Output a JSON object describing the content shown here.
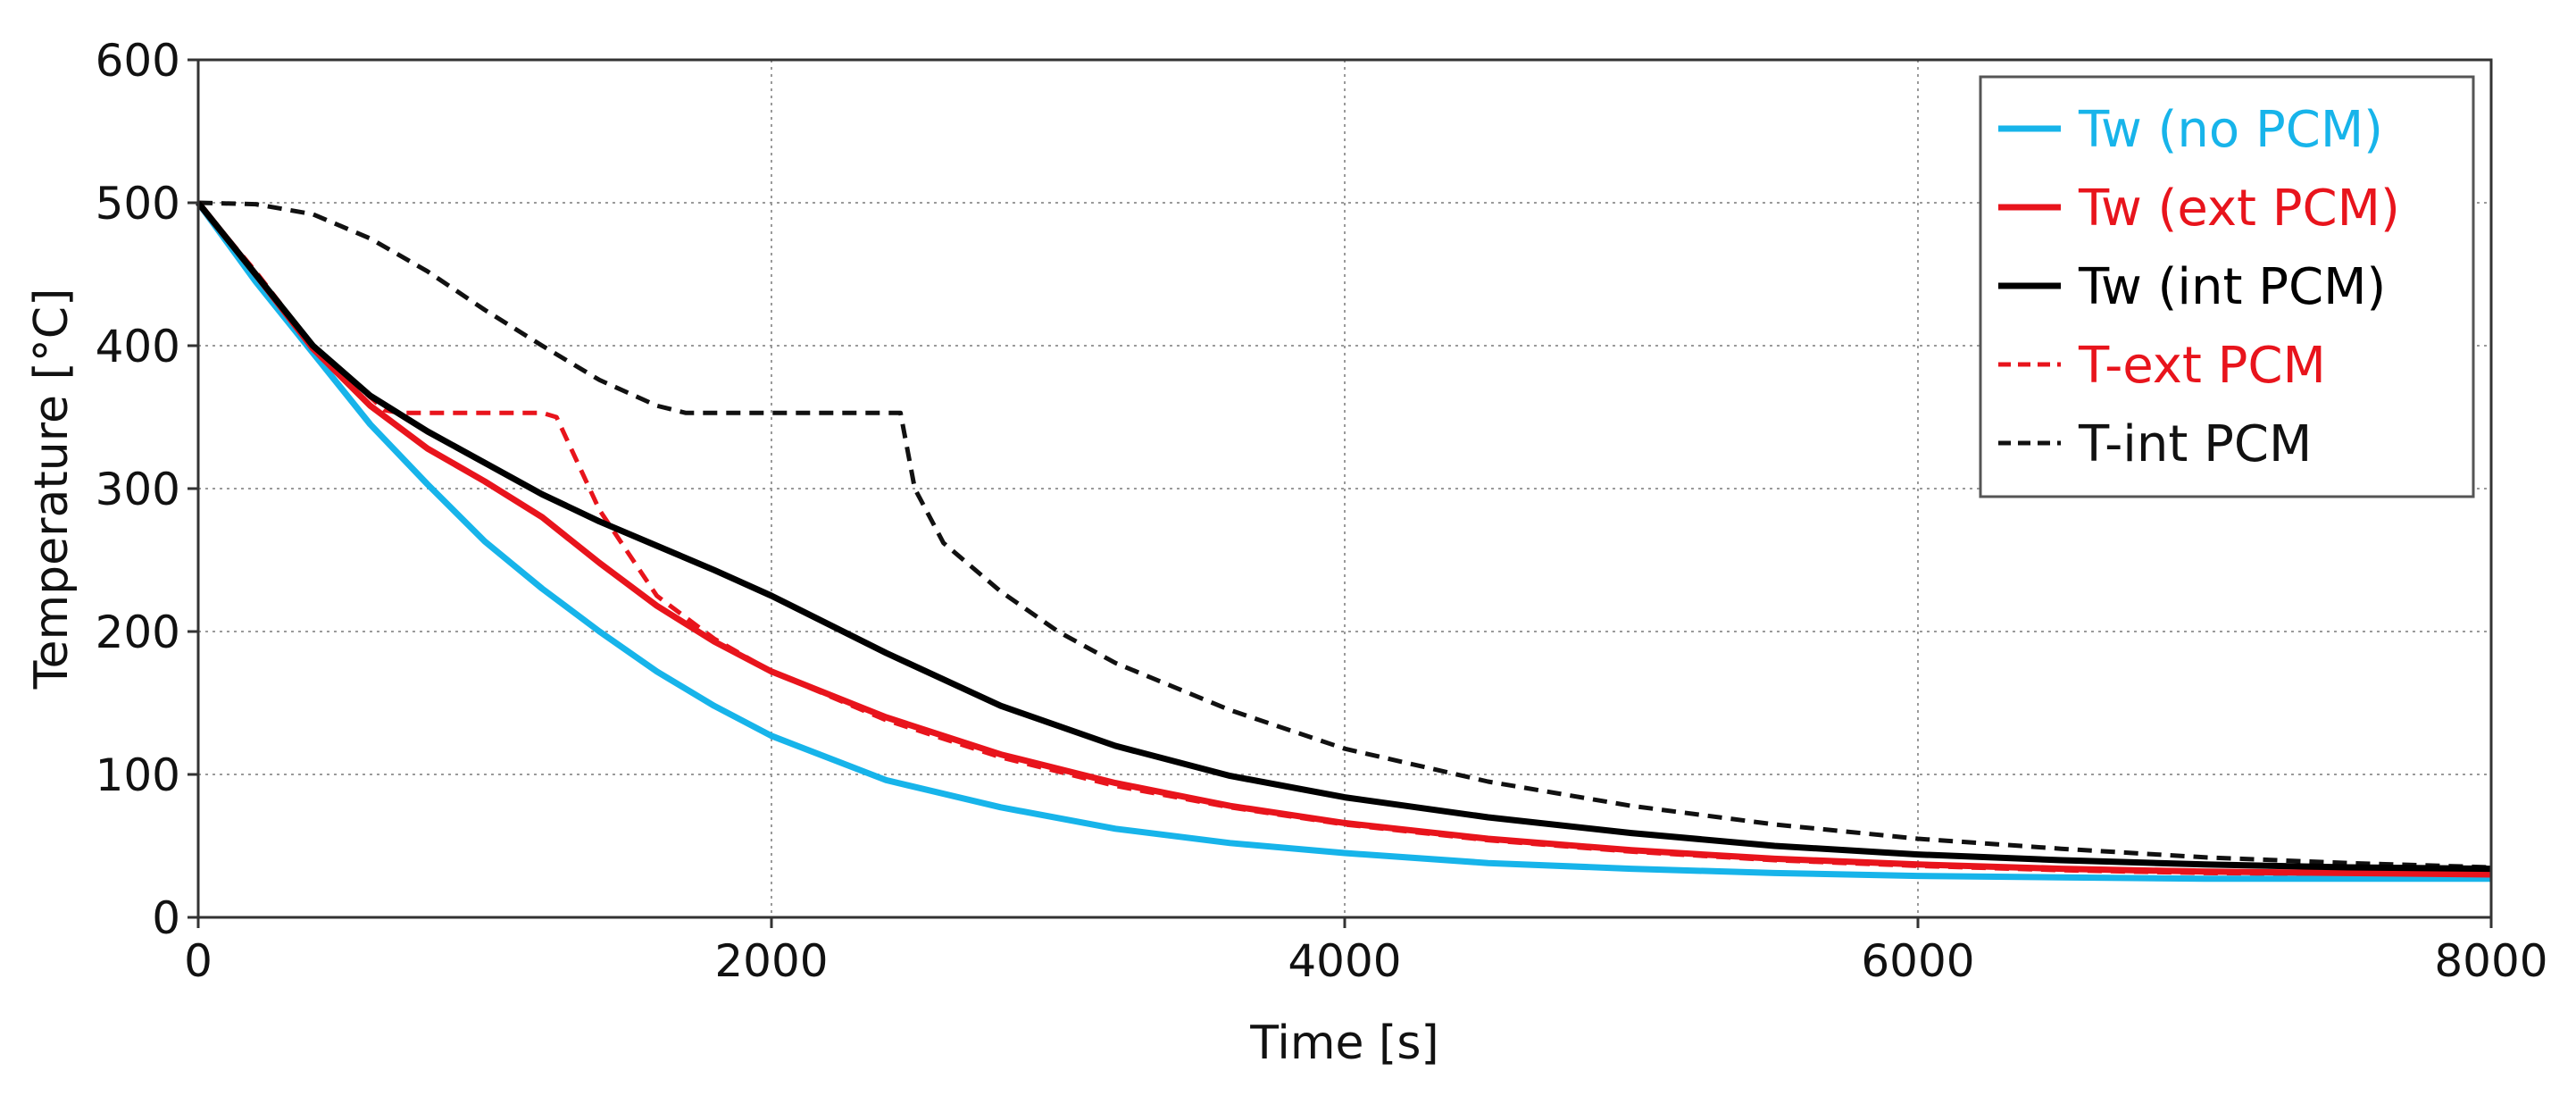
{
  "chart_data": {
    "type": "line",
    "title": "",
    "xlabel": "Time [s]",
    "ylabel": "Temperature [°C]",
    "xlim": [
      0,
      8000
    ],
    "ylim": [
      0,
      600
    ],
    "xticks": [
      0,
      2000,
      4000,
      6000,
      8000
    ],
    "yticks": [
      0,
      100,
      200,
      300,
      400,
      500,
      600
    ],
    "xtick_labels": [
      "0",
      "2000",
      "4000",
      "6000",
      "8000"
    ],
    "ytick_labels": [
      "0",
      "100",
      "200",
      "300",
      "400",
      "500",
      "600"
    ],
    "grid": true,
    "legend_position": "top-right",
    "series": [
      {
        "name": "Tw (no PCM)",
        "color": "#17b4ea",
        "dash": "solid",
        "x": [
          0,
          200,
          400,
          600,
          800,
          1000,
          1200,
          1400,
          1600,
          1800,
          2000,
          2400,
          2800,
          3200,
          3600,
          4000,
          4500,
          5000,
          5500,
          6000,
          6500,
          7000,
          7500,
          8000
        ],
        "y": [
          500,
          445,
          395,
          345,
          303,
          263,
          230,
          200,
          172,
          148,
          127,
          96,
          77,
          62,
          52,
          45,
          38,
          34,
          31,
          29,
          28,
          27,
          27,
          27
        ]
      },
      {
        "name": "Tw (ext PCM)",
        "color": "#e8141c",
        "dash": "solid",
        "x": [
          0,
          200,
          400,
          600,
          800,
          1000,
          1200,
          1400,
          1600,
          1800,
          2000,
          2400,
          2800,
          3200,
          3600,
          4000,
          4500,
          5000,
          5500,
          6000,
          6500,
          7000,
          7500,
          8000
        ],
        "y": [
          500,
          450,
          398,
          358,
          328,
          305,
          280,
          248,
          218,
          193,
          172,
          140,
          114,
          94,
          78,
          66,
          55,
          47,
          41,
          37,
          34,
          32,
          31,
          30
        ]
      },
      {
        "name": "Tw (int PCM)",
        "color": "#000000",
        "dash": "solid",
        "x": [
          0,
          200,
          400,
          600,
          800,
          1000,
          1200,
          1400,
          1600,
          1800,
          2000,
          2400,
          2800,
          3200,
          3600,
          4000,
          4500,
          5000,
          5500,
          6000,
          6500,
          7000,
          7500,
          8000
        ],
        "y": [
          500,
          450,
          400,
          365,
          340,
          318,
          296,
          277,
          260,
          243,
          225,
          185,
          148,
          120,
          99,
          84,
          70,
          59,
          50,
          44,
          40,
          37,
          35,
          34
        ]
      },
      {
        "name": "T-ext PCM",
        "color": "#e8141c",
        "dash": "dashed",
        "x": [
          0,
          200,
          400,
          650,
          700,
          1000,
          1200,
          1250,
          1400,
          1600,
          1800,
          2000,
          2400,
          2800,
          3200,
          3600,
          4000,
          4500,
          5000,
          5500,
          6000,
          6500,
          7000,
          7500,
          8000
        ],
        "y": [
          500,
          452,
          400,
          355,
          353,
          353,
          353,
          350,
          285,
          225,
          195,
          172,
          138,
          112,
          92,
          77,
          65,
          54,
          46,
          40,
          36,
          33,
          31,
          30,
          30
        ]
      },
      {
        "name": "T-int PCM",
        "color": "#111111",
        "dash": "dashed",
        "x": [
          0,
          200,
          400,
          600,
          800,
          1000,
          1200,
          1400,
          1600,
          1700,
          2000,
          2200,
          2400,
          2450,
          2500,
          2600,
          2800,
          3000,
          3200,
          3600,
          4000,
          4500,
          5000,
          5500,
          6000,
          6500,
          7000,
          7500,
          8000
        ],
        "y": [
          500,
          499,
          492,
          475,
          452,
          425,
          400,
          376,
          358,
          353,
          353,
          353,
          353,
          353,
          300,
          262,
          228,
          200,
          178,
          145,
          118,
          95,
          78,
          65,
          55,
          48,
          42,
          38,
          35
        ]
      }
    ]
  }
}
